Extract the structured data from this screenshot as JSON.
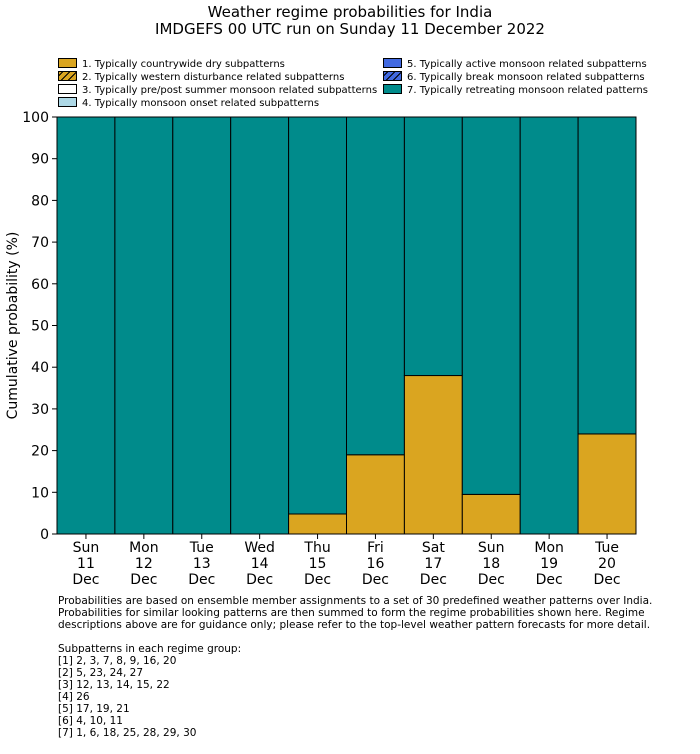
{
  "title_line1": "Weather regime probabilities for India",
  "title_line2": "IMDGEFS 00 UTC run on Sunday 11 December 2022",
  "legend": [
    {
      "label": "1. Typically countrywide dry subpatterns",
      "color": "#daa520",
      "hatch": false
    },
    {
      "label": "2. Typically western disturbance related subpatterns",
      "color": "#daa520",
      "hatch": true
    },
    {
      "label": "3. Typically pre/post summer monsoon related subpatterns",
      "color": "#ffffff",
      "hatch": false
    },
    {
      "label": "4. Typically monsoon onset related subpatterns",
      "color": "#add8e6",
      "hatch": false
    },
    {
      "label": "5. Typically active monsoon related subpatterns",
      "color": "#4169e1",
      "hatch": false
    },
    {
      "label": "6. Typically break monsoon related subpatterns",
      "color": "#4169e1",
      "hatch": true
    },
    {
      "label": "7. Typically retreating monsoon related patterns",
      "color": "#008b8b",
      "hatch": false
    }
  ],
  "chart_data": {
    "type": "bar",
    "stacked": true,
    "ylabel": "Cumulative probability (%)",
    "ylim": [
      0,
      100
    ],
    "yticks": [
      0,
      10,
      20,
      30,
      40,
      50,
      60,
      70,
      80,
      90,
      100
    ],
    "categories": [
      [
        "Sun",
        "11",
        "Dec"
      ],
      [
        "Mon",
        "12",
        "Dec"
      ],
      [
        "Tue",
        "13",
        "Dec"
      ],
      [
        "Wed",
        "14",
        "Dec"
      ],
      [
        "Thu",
        "15",
        "Dec"
      ],
      [
        "Fri",
        "16",
        "Dec"
      ],
      [
        "Sat",
        "17",
        "Dec"
      ],
      [
        "Sun",
        "18",
        "Dec"
      ],
      [
        "Mon",
        "19",
        "Dec"
      ],
      [
        "Tue",
        "20",
        "Dec"
      ]
    ],
    "series": [
      {
        "name": "1. Typically countrywide dry subpatterns",
        "color": "#daa520",
        "values": [
          0,
          0,
          0,
          0,
          4.8,
          19,
          38,
          9.5,
          0,
          24
        ]
      },
      {
        "name": "7. Typically retreating monsoon related patterns",
        "color": "#008b8b",
        "values": [
          100,
          100,
          100,
          100,
          95.2,
          81,
          62,
          90.5,
          100,
          76
        ]
      }
    ]
  },
  "notes": [
    "Probabilities are based on ensemble member assignments to a set of 30 predefined weather patterns over India.",
    "Probabilities for similar looking patterns are then summed to form the regime probabilities shown here. Regime",
    "descriptions above are for guidance only; please refer to the top-level weather pattern forecasts for more detail.",
    "",
    "Subpatterns in each regime group:",
    "[1] 2, 3, 7, 8, 9, 16, 20",
    "[2] 5, 23, 24, 27",
    "[3] 12, 13, 14, 15, 22",
    "[4] 26",
    "[5] 17, 19, 21",
    "[6] 4, 10, 11",
    "[7] 1, 6, 18, 25, 28, 29, 30"
  ]
}
